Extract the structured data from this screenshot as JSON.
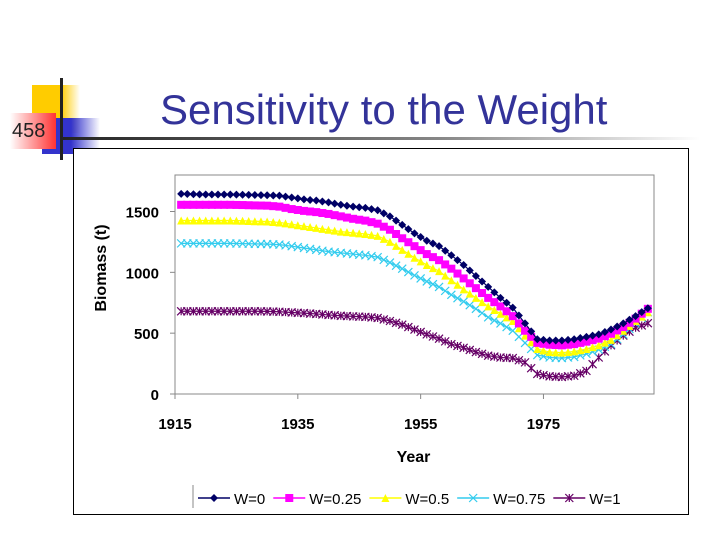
{
  "slide": {
    "page_number": "458",
    "title": "Sensitivity to the Weight"
  },
  "chart_data": {
    "type": "line",
    "title": "",
    "xlabel": "Year",
    "ylabel": "Biomass (t)",
    "xlim": [
      1915,
      1993
    ],
    "ylim": [
      0,
      1800
    ],
    "xticks": [
      1915,
      1935,
      1955,
      1975
    ],
    "yticks": [
      0,
      500,
      1000,
      1500
    ],
    "grid": false,
    "legend": "bottom",
    "x": [
      1916,
      1918,
      1920,
      1922,
      1924,
      1926,
      1928,
      1930,
      1932,
      1934,
      1936,
      1938,
      1940,
      1942,
      1944,
      1946,
      1948,
      1950,
      1952,
      1954,
      1956,
      1958,
      1960,
      1962,
      1964,
      1966,
      1968,
      1970,
      1972,
      1974,
      1976,
      1978,
      1980,
      1982,
      1984,
      1986,
      1988,
      1990,
      1992
    ],
    "series": [
      {
        "name": "W=0",
        "color": "#000066",
        "marker": "diamond",
        "values": [
          1645,
          1642,
          1640,
          1640,
          1640,
          1638,
          1636,
          1634,
          1630,
          1615,
          1600,
          1590,
          1575,
          1555,
          1540,
          1530,
          1510,
          1460,
          1390,
          1320,
          1260,
          1215,
          1140,
          1060,
          970,
          880,
          790,
          710,
          580,
          450,
          440,
          440,
          450,
          470,
          490,
          530,
          580,
          640,
          705
        ]
      },
      {
        "name": "W=0.25",
        "color": "#ff00ff",
        "marker": "square",
        "values": [
          1555,
          1555,
          1555,
          1555,
          1555,
          1553,
          1550,
          1548,
          1540,
          1520,
          1505,
          1495,
          1480,
          1460,
          1440,
          1425,
          1400,
          1350,
          1280,
          1215,
          1150,
          1100,
          1030,
          950,
          870,
          790,
          720,
          640,
          520,
          420,
          405,
          400,
          410,
          430,
          455,
          495,
          550,
          620,
          700
        ]
      },
      {
        "name": "W=0.5",
        "color": "#ffff00",
        "marker": "triangle",
        "values": [
          1426,
          1426,
          1426,
          1426,
          1426,
          1424,
          1420,
          1418,
          1410,
          1395,
          1380,
          1365,
          1350,
          1335,
          1325,
          1315,
          1300,
          1250,
          1185,
          1120,
          1060,
          1010,
          935,
          860,
          790,
          720,
          660,
          600,
          480,
          370,
          345,
          340,
          350,
          370,
          400,
          445,
          520,
          600,
          672
        ]
      },
      {
        "name": "W=0.75",
        "color": "#33ccee",
        "marker": "x",
        "values": [
          1238,
          1238,
          1238,
          1238,
          1238,
          1236,
          1234,
          1232,
          1228,
          1215,
          1200,
          1185,
          1170,
          1160,
          1150,
          1140,
          1125,
          1080,
          1030,
          975,
          925,
          880,
          815,
          760,
          700,
          630,
          580,
          520,
          420,
          320,
          300,
          295,
          305,
          330,
          365,
          410,
          490,
          580,
          672
        ]
      },
      {
        "name": "W=1",
        "color": "#660066",
        "marker": "star",
        "values": [
          680,
          680,
          680,
          680,
          680,
          680,
          680,
          679,
          676,
          670,
          665,
          658,
          650,
          643,
          638,
          634,
          625,
          600,
          570,
          530,
          490,
          455,
          410,
          380,
          345,
          315,
          300,
          295,
          260,
          165,
          145,
          140,
          150,
          190,
          300,
          400,
          480,
          545,
          582
        ]
      }
    ]
  }
}
